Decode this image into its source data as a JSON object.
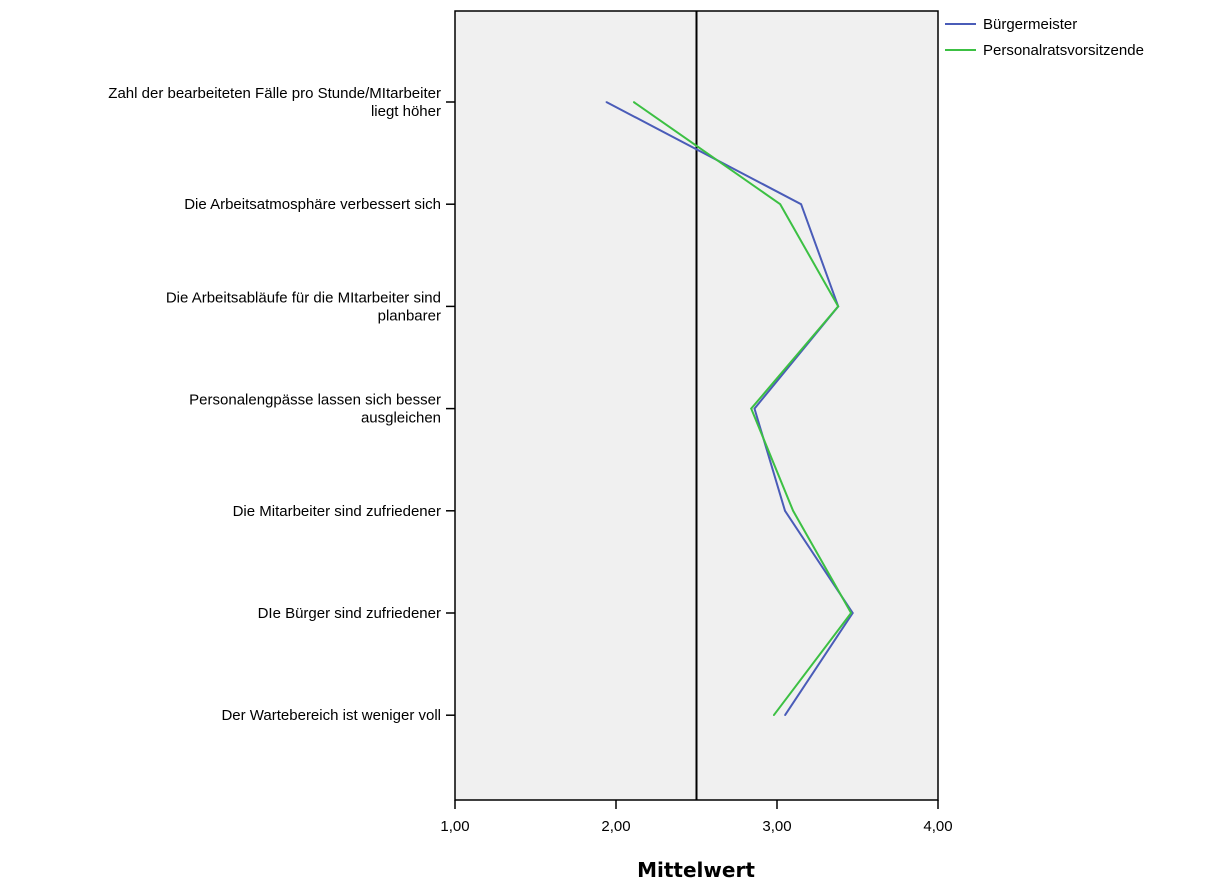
{
  "chart_data": {
    "type": "line",
    "orientation": "horizontal",
    "xlabel": "Mittelwert",
    "xlim": [
      1,
      4
    ],
    "xticks": [
      1,
      2,
      3,
      4
    ],
    "xtick_labels": [
      "1,00",
      "2,00",
      "3,00",
      "4,00"
    ],
    "reference_line": 2.5,
    "grid": false,
    "legend_position": "top-right",
    "categories": [
      [
        "Zahl der bearbeiteten Fälle pro Stunde/MItarbeiter",
        "liegt höher"
      ],
      [
        "Die Arbeitsatmosphäre verbessert sich"
      ],
      [
        "Die Arbeitsabläufe für die MItarbeiter sind",
        "planbarer"
      ],
      [
        "Personalengpässe lassen sich besser",
        "ausgleichen"
      ],
      [
        "Die Mitarbeiter sind zufriedener"
      ],
      [
        "DIe Bürger sind zufriedener"
      ],
      [
        "Der Wartebereich ist weniger voll"
      ]
    ],
    "series": [
      {
        "name": "Bürgermeister",
        "color": "#4a5cb8",
        "values": [
          1.94,
          3.15,
          3.38,
          2.86,
          3.05,
          3.47,
          3.05
        ]
      },
      {
        "name": "Personalratsvorsitzende",
        "color": "#3cc043",
        "values": [
          2.11,
          3.02,
          3.38,
          2.84,
          3.1,
          3.46,
          2.98
        ]
      }
    ]
  }
}
